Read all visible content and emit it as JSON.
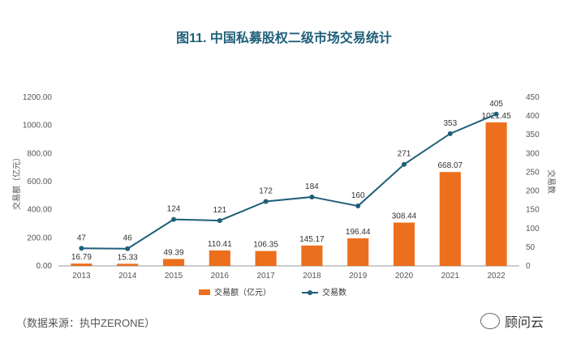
{
  "title": "图11. 中国私募股权二级市场交易统计",
  "source": "（数据来源：执中ZERONE）",
  "watermark": "顾问云",
  "colors": {
    "bar": "#ec6f1d",
    "line": "#1f5f78",
    "title": "#1f5f78"
  },
  "chart_data": {
    "type": "bar",
    "title": "图11. 中国私募股权二级市场交易统计",
    "categories": [
      "2013",
      "2014",
      "2015",
      "2016",
      "2017",
      "2018",
      "2019",
      "2020",
      "2021",
      "2022"
    ],
    "series": [
      {
        "name": "交易额（亿元）",
        "type": "bar",
        "axis": "left",
        "values": [
          16.79,
          15.33,
          49.39,
          110.41,
          106.35,
          145.17,
          196.44,
          308.44,
          668.07,
          1021.45
        ],
        "labels": [
          "16.79",
          "15.33",
          "49.39",
          "110.41",
          "106.35",
          "145.17",
          "196.44",
          "308.44",
          "668.07",
          "1021.45"
        ]
      },
      {
        "name": "交易数",
        "type": "line",
        "axis": "right",
        "values": [
          47,
          46,
          124,
          121,
          172,
          184,
          160,
          271,
          353,
          405
        ],
        "labels": [
          "47",
          "46",
          "124",
          "121",
          "172",
          "184",
          "160",
          "271",
          "353",
          "405"
        ]
      }
    ],
    "ylabel_left": "交易额（亿元）",
    "ylabel_right": "交易数",
    "ylim_left": [
      0,
      1200
    ],
    "ylim_right": [
      0,
      450
    ],
    "yticks_left": [
      "0.00",
      "200.00",
      "400.00",
      "600.00",
      "800.00",
      "1000.00",
      "1200.00"
    ],
    "yticks_right": [
      "0",
      "50",
      "100",
      "150",
      "200",
      "250",
      "300",
      "350",
      "400",
      "450"
    ],
    "grid": false,
    "legend_position": "bottom"
  }
}
